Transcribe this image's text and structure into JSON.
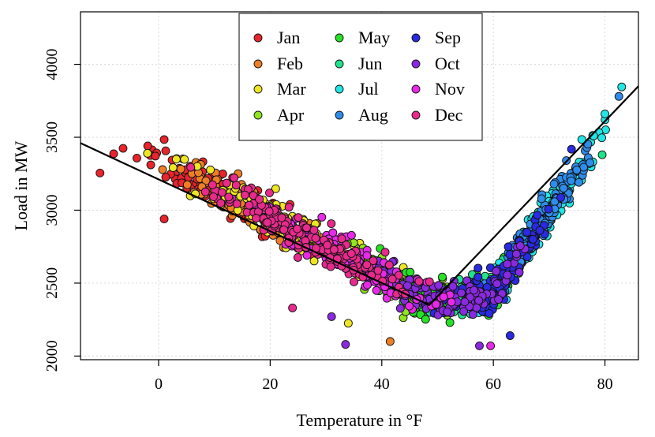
{
  "chart_data": {
    "type": "scatter",
    "title": "",
    "xlabel": "Temperature in °F",
    "ylabel": "Load in MW",
    "xlim": [
      -14,
      86
    ],
    "ylim": [
      1975,
      4360
    ],
    "x_ticks": [
      0,
      20,
      40,
      60,
      80
    ],
    "y_ticks": [
      2000,
      2500,
      3000,
      3500,
      4000
    ],
    "grid": true,
    "legend_position": "top-center",
    "months": [
      {
        "name": "Jan",
        "color": "#e8242d"
      },
      {
        "name": "Feb",
        "color": "#ef7f24"
      },
      {
        "name": "Mar",
        "color": "#eee624"
      },
      {
        "name": "Apr",
        "color": "#8fe61f"
      },
      {
        "name": "May",
        "color": "#26e226"
      },
      {
        "name": "Jun",
        "color": "#1fe28d"
      },
      {
        "name": "Jul",
        "color": "#22e6e6"
      },
      {
        "name": "Aug",
        "color": "#2e8ceb"
      },
      {
        "name": "Sep",
        "color": "#2a2ae0"
      },
      {
        "name": "Oct",
        "color": "#8a2ae0"
      },
      {
        "name": "Nov",
        "color": "#e829e8"
      },
      {
        "name": "Dec",
        "color": "#e82a8c"
      }
    ],
    "fit_line": {
      "x": [
        -14,
        48.5,
        86
      ],
      "y": [
        3460,
        2350,
        3850
      ]
    },
    "point_clouds": [
      {
        "month": 0,
        "x_range": [
          -10,
          35
        ],
        "n": 170,
        "seed": 11
      },
      {
        "month": 1,
        "x_range": [
          -2,
          37
        ],
        "n": 150,
        "seed": 12
      },
      {
        "month": 2,
        "x_range": [
          -1,
          48
        ],
        "n": 140,
        "seed": 13
      },
      {
        "month": 3,
        "x_range": [
          26,
          60
        ],
        "n": 130,
        "seed": 14
      },
      {
        "month": 4,
        "x_range": [
          36,
          70
        ],
        "n": 140,
        "seed": 15
      },
      {
        "month": 5,
        "x_range": [
          44,
          78
        ],
        "n": 150,
        "seed": 16
      },
      {
        "month": 6,
        "x_range": [
          55,
          83
        ],
        "n": 170,
        "seed": 17
      },
      {
        "month": 7,
        "x_range": [
          52,
          82
        ],
        "n": 170,
        "seed": 18
      },
      {
        "month": 8,
        "x_range": [
          46,
          76
        ],
        "n": 140,
        "seed": 19
      },
      {
        "month": 9,
        "x_range": [
          32,
          70
        ],
        "n": 130,
        "seed": 20
      },
      {
        "month": 10,
        "x_range": [
          11,
          56
        ],
        "n": 140,
        "seed": 21
      },
      {
        "month": 11,
        "x_range": [
          3,
          52
        ],
        "n": 170,
        "seed": 22
      }
    ],
    "notable_points": [
      {
        "x": -10.5,
        "y": 3255,
        "month": 0
      },
      {
        "x": -2,
        "y": 3390,
        "month": 2
      },
      {
        "x": 1,
        "y": 2940,
        "month": 0
      },
      {
        "x": 24,
        "y": 2330,
        "month": 11
      },
      {
        "x": 31,
        "y": 2270,
        "month": 9
      },
      {
        "x": 33.5,
        "y": 2080,
        "month": 9
      },
      {
        "x": 34,
        "y": 2225,
        "month": 2
      },
      {
        "x": 41.5,
        "y": 2100,
        "month": 1
      },
      {
        "x": 57.5,
        "y": 2070,
        "month": 9
      },
      {
        "x": 59.5,
        "y": 2070,
        "month": 10
      },
      {
        "x": 63,
        "y": 2140,
        "month": 8
      },
      {
        "x": 79.5,
        "y": 3380,
        "month": 5
      },
      {
        "x": 80,
        "y": 3660,
        "month": 6
      },
      {
        "x": 82.5,
        "y": 3780,
        "month": 7
      },
      {
        "x": 83,
        "y": 3845,
        "month": 6
      }
    ]
  }
}
